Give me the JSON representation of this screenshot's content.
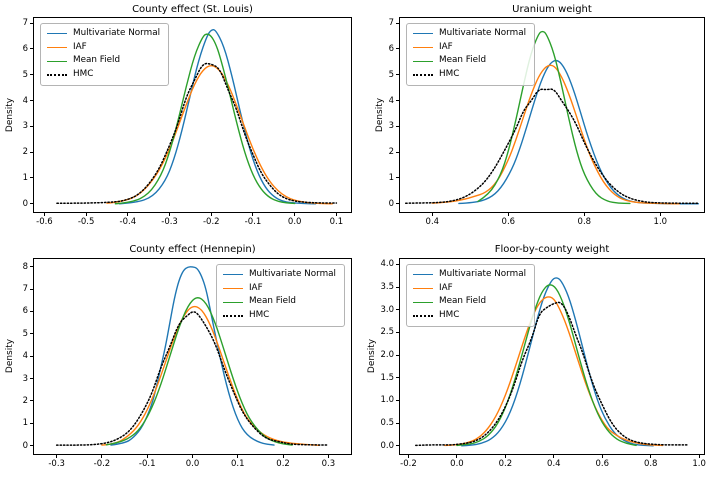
{
  "figure": {
    "background": "#ffffff"
  },
  "palette": {
    "multivariate_normal": "#1f77b4",
    "iaf": "#ff7f0e",
    "mean_field": "#2ca02c",
    "hmc": "#000000",
    "legend_border": "#b4b4b4"
  },
  "chart_data": [
    {
      "type": "line",
      "title": "County effect (St. Louis)",
      "ylabel": "Density",
      "xlim": [
        -0.625,
        0.135
      ],
      "ylim": [
        -0.32,
        7.2
      ],
      "xticks": [
        -0.6,
        -0.5,
        -0.4,
        -0.3,
        -0.2,
        -0.1,
        0.0,
        0.1
      ],
      "xtick_labels": [
        "-0.6",
        "-0.5",
        "-0.4",
        "-0.3",
        "-0.2",
        "-0.1",
        "0.0",
        "0.1"
      ],
      "yticks": [
        0,
        1,
        2,
        3,
        4,
        5,
        6,
        7
      ],
      "ytick_labels": [
        "0",
        "1",
        "2",
        "3",
        "4",
        "5",
        "6",
        "7"
      ],
      "grid": false,
      "legend_loc": "upper left",
      "series": [
        {
          "name": "Multivariate Normal",
          "color": "#1f77b4",
          "style": "solid",
          "x": [
            -0.42,
            -0.38,
            -0.34,
            -0.31,
            -0.29,
            -0.27,
            -0.25,
            -0.23,
            -0.21,
            -0.2,
            -0.19,
            -0.17,
            -0.15,
            -0.13,
            -0.11,
            -0.09,
            -0.07,
            -0.05,
            -0.03,
            -0.01,
            0.02,
            0.05
          ],
          "y": [
            0.0,
            0.04,
            0.27,
            0.88,
            1.68,
            2.84,
            4.24,
            5.59,
            6.52,
            6.74,
            6.75,
            6.13,
            4.94,
            3.52,
            2.22,
            1.24,
            0.61,
            0.27,
            0.1,
            0.04,
            0.01,
            0.0
          ]
        },
        {
          "name": "IAF",
          "color": "#ff7f0e",
          "style": "solid",
          "x": [
            -0.45,
            -0.41,
            -0.37,
            -0.33,
            -0.3,
            -0.28,
            -0.26,
            -0.24,
            -0.22,
            -0.2,
            -0.18,
            -0.16,
            -0.14,
            -0.12,
            -0.1,
            -0.08,
            -0.06,
            -0.04,
            -0.02,
            0.0,
            0.03,
            0.06,
            0.09
          ],
          "y": [
            0.02,
            0.09,
            0.36,
            1.11,
            2.11,
            2.96,
            3.85,
            4.65,
            5.2,
            5.4,
            5.2,
            4.65,
            3.85,
            2.96,
            2.11,
            1.4,
            0.86,
            0.49,
            0.26,
            0.13,
            0.04,
            0.01,
            0.0
          ]
        },
        {
          "name": "Mean Field",
          "color": "#2ca02c",
          "style": "solid",
          "x": [
            -0.43,
            -0.39,
            -0.35,
            -0.32,
            -0.3,
            -0.28,
            -0.26,
            -0.24,
            -0.22,
            -0.21,
            -0.2,
            -0.19,
            -0.18,
            -0.16,
            -0.14,
            -0.12,
            -0.1,
            -0.08,
            -0.06,
            -0.04,
            -0.02,
            0.0
          ],
          "y": [
            0.0,
            0.05,
            0.36,
            1.09,
            1.98,
            3.19,
            4.55,
            5.77,
            6.5,
            6.6,
            6.5,
            6.22,
            5.77,
            4.55,
            3.19,
            1.98,
            1.09,
            0.54,
            0.23,
            0.09,
            0.03,
            0.01
          ]
        },
        {
          "name": "HMC",
          "color": "#000000",
          "style": "dotted",
          "x": [
            -0.57,
            -0.53,
            -0.49,
            -0.45,
            -0.41,
            -0.37,
            -0.33,
            -0.3,
            -0.28,
            -0.26,
            -0.24,
            -0.22,
            -0.2,
            -0.18,
            -0.16,
            -0.14,
            -0.12,
            -0.1,
            -0.08,
            -0.06,
            -0.04,
            -0.02,
            0.0,
            0.03,
            0.06,
            0.1
          ],
          "y": [
            0.02,
            0.02,
            0.03,
            0.05,
            0.1,
            0.37,
            1.17,
            2.25,
            3.08,
            4.15,
            4.8,
            5.45,
            5.42,
            5.25,
            4.42,
            3.7,
            2.69,
            1.9,
            1.17,
            0.72,
            0.37,
            0.19,
            0.1,
            0.05,
            0.03,
            0.03
          ]
        }
      ]
    },
    {
      "type": "line",
      "title": "Uranium weight",
      "ylabel": "Density",
      "xlim": [
        0.315,
        1.115
      ],
      "ylim": [
        -0.32,
        7.2
      ],
      "xticks": [
        0.4,
        0.6,
        0.8,
        1.0
      ],
      "xtick_labels": [
        "0.4",
        "0.6",
        "0.8",
        "1.0"
      ],
      "yticks": [
        0,
        1,
        2,
        3,
        4,
        5,
        6,
        7
      ],
      "ytick_labels": [
        "0",
        "1",
        "2",
        "3",
        "4",
        "5",
        "6",
        "7"
      ],
      "grid": false,
      "legend_loc": "upper left",
      "series": [
        {
          "name": "Multivariate Normal",
          "color": "#1f77b4",
          "style": "solid",
          "x": [
            0.47,
            0.51,
            0.55,
            0.58,
            0.61,
            0.63,
            0.65,
            0.67,
            0.69,
            0.71,
            0.73,
            0.75,
            0.77,
            0.79,
            0.81,
            0.84,
            0.87,
            0.9,
            0.93,
            0.96,
            1.0,
            1.04,
            1.07,
            1.1
          ],
          "y": [
            0.01,
            0.04,
            0.2,
            0.58,
            1.34,
            2.11,
            3.05,
            4.04,
            4.9,
            5.47,
            5.6,
            5.23,
            4.5,
            3.55,
            2.56,
            1.34,
            0.58,
            0.2,
            0.06,
            0.02,
            0.01,
            0.0,
            0.0,
            0.0
          ]
        },
        {
          "name": "IAF",
          "color": "#ff7f0e",
          "style": "solid",
          "x": [
            0.4,
            0.44,
            0.48,
            0.51,
            0.54,
            0.57,
            0.6,
            0.62,
            0.64,
            0.66,
            0.68,
            0.7,
            0.72,
            0.74,
            0.76,
            0.78,
            0.8,
            0.82,
            0.85,
            0.88,
            0.91,
            0.95,
            1.0,
            1.05
          ],
          "y": [
            0.02,
            0.06,
            0.15,
            0.28,
            0.42,
            0.82,
            1.68,
            2.47,
            3.37,
            4.24,
            4.95,
            5.35,
            5.38,
            4.95,
            4.24,
            3.37,
            2.47,
            1.68,
            0.82,
            0.33,
            0.11,
            0.03,
            0.01,
            0.0
          ]
        },
        {
          "name": "Mean Field",
          "color": "#2ca02c",
          "style": "solid",
          "x": [
            0.52,
            0.55,
            0.58,
            0.6,
            0.62,
            0.64,
            0.66,
            0.68,
            0.69,
            0.7,
            0.72,
            0.74,
            0.76,
            0.78,
            0.8,
            0.83,
            0.86,
            0.89,
            0.92
          ],
          "y": [
            0.09,
            0.36,
            1.11,
            2.01,
            3.24,
            4.62,
            5.86,
            6.6,
            6.7,
            6.6,
            5.86,
            4.62,
            3.24,
            2.01,
            1.11,
            0.36,
            0.09,
            0.02,
            0.01
          ]
        },
        {
          "name": "HMC",
          "color": "#000000",
          "style": "dotted",
          "x": [
            0.33,
            0.37,
            0.41,
            0.45,
            0.49,
            0.53,
            0.56,
            0.59,
            0.62,
            0.64,
            0.66,
            0.68,
            0.7,
            0.72,
            0.74,
            0.76,
            0.78,
            0.8,
            0.83,
            0.86,
            0.89,
            0.92,
            0.96,
            1.0,
            1.05,
            1.1
          ],
          "y": [
            0.02,
            0.03,
            0.04,
            0.09,
            0.27,
            0.7,
            1.27,
            2.06,
            2.9,
            3.62,
            3.98,
            4.45,
            4.42,
            4.46,
            4.0,
            3.57,
            3.05,
            2.36,
            1.51,
            0.86,
            0.44,
            0.2,
            0.06,
            0.03,
            0.02,
            0.02
          ]
        }
      ]
    },
    {
      "type": "line",
      "title": "County effect (Hennepin)",
      "ylabel": "Density",
      "xlim": [
        -0.35,
        0.35
      ],
      "ylim": [
        -0.38,
        8.35
      ],
      "xticks": [
        -0.3,
        -0.2,
        -0.1,
        0.0,
        0.1,
        0.2,
        0.3
      ],
      "xtick_labels": [
        "-0.3",
        "-0.2",
        "-0.1",
        "0.0",
        "0.1",
        "0.2",
        "0.3"
      ],
      "yticks": [
        0,
        1,
        2,
        3,
        4,
        5,
        6,
        7,
        8
      ],
      "ytick_labels": [
        "0",
        "1",
        "2",
        "3",
        "4",
        "5",
        "6",
        "7",
        "8"
      ],
      "grid": false,
      "legend_loc": "upper right",
      "series": [
        {
          "name": "Multivariate Normal",
          "color": "#1f77b4",
          "style": "solid",
          "x": [
            -0.18,
            -0.15,
            -0.13,
            -0.11,
            -0.09,
            -0.08,
            -0.07,
            -0.06,
            -0.05,
            -0.04,
            -0.03,
            -0.02,
            -0.01,
            0.0,
            0.01,
            0.02,
            0.03,
            0.04,
            0.06,
            0.08,
            0.1,
            0.12,
            0.15,
            0.18
          ],
          "y": [
            0.02,
            0.1,
            0.35,
            0.85,
            1.8,
            2.6,
            3.5,
            4.4,
            5.5,
            6.6,
            7.4,
            7.85,
            8.0,
            8.0,
            7.95,
            7.6,
            7.0,
            6.0,
            4.0,
            2.3,
            1.1,
            0.45,
            0.1,
            0.02
          ]
        },
        {
          "name": "IAF",
          "color": "#ff7f0e",
          "style": "solid",
          "x": [
            -0.2,
            -0.17,
            -0.14,
            -0.12,
            -0.1,
            -0.08,
            -0.06,
            -0.04,
            -0.02,
            0.0,
            0.02,
            0.04,
            0.06,
            0.08,
            0.1,
            0.12,
            0.15,
            0.18,
            0.21,
            0.25,
            0.28
          ],
          "y": [
            0.02,
            0.06,
            0.45,
            0.88,
            1.57,
            2.54,
            3.7,
            4.88,
            5.82,
            6.28,
            6.12,
            5.4,
            4.3,
            3.1,
            2.02,
            1.19,
            0.55,
            0.25,
            0.12,
            0.04,
            0.01
          ]
        },
        {
          "name": "Mean Field",
          "color": "#2ca02c",
          "style": "solid",
          "x": [
            -0.19,
            -0.16,
            -0.13,
            -0.11,
            -0.09,
            -0.07,
            -0.05,
            -0.03,
            -0.01,
            0.01,
            0.03,
            0.05,
            0.07,
            0.09,
            0.11,
            0.13,
            0.16,
            0.19,
            0.22
          ],
          "y": [
            0.03,
            0.13,
            0.45,
            0.91,
            1.66,
            2.71,
            4.0,
            5.29,
            6.28,
            6.7,
            6.41,
            5.52,
            4.26,
            2.96,
            1.84,
            1.03,
            0.35,
            0.1,
            0.02
          ]
        },
        {
          "name": "HMC",
          "color": "#000000",
          "style": "dotted",
          "x": [
            -0.3,
            -0.27,
            -0.24,
            -0.21,
            -0.18,
            -0.15,
            -0.13,
            -0.11,
            -0.09,
            -0.07,
            -0.05,
            -0.03,
            -0.01,
            0.0,
            0.01,
            0.03,
            0.05,
            0.07,
            0.09,
            0.11,
            0.13,
            0.16,
            0.19,
            0.22,
            0.26,
            0.3
          ],
          "y": [
            0.02,
            0.02,
            0.02,
            0.05,
            0.15,
            0.45,
            0.86,
            1.5,
            2.3,
            3.5,
            4.42,
            5.48,
            5.85,
            6.0,
            5.95,
            5.35,
            4.58,
            3.42,
            2.42,
            1.5,
            0.92,
            0.32,
            0.17,
            0.05,
            0.03,
            0.02
          ]
        }
      ]
    },
    {
      "type": "line",
      "title": "Floor-by-county weight",
      "ylabel": "Density",
      "xlim": [
        -0.235,
        1.02
      ],
      "ylim": [
        -0.18,
        4.12
      ],
      "xticks": [
        -0.2,
        0.0,
        0.2,
        0.4,
        0.6,
        0.8,
        1.0
      ],
      "xtick_labels": [
        "-0.2",
        "0.0",
        "0.2",
        "0.4",
        "0.6",
        "0.8",
        "1.0"
      ],
      "yticks": [
        0,
        0.5,
        1,
        1.5,
        2,
        2.5,
        3,
        3.5,
        4
      ],
      "ytick_labels": [
        "0.0",
        "0.5",
        "1.0",
        "1.5",
        "2.0",
        "2.5",
        "3.0",
        "3.5",
        "4.0"
      ],
      "grid": false,
      "legend_loc": "upper left",
      "series": [
        {
          "name": "Multivariate Normal",
          "color": "#1f77b4",
          "style": "solid",
          "x": [
            0.02,
            0.06,
            0.1,
            0.14,
            0.18,
            0.22,
            0.26,
            0.3,
            0.33,
            0.36,
            0.39,
            0.41,
            0.43,
            0.46,
            0.49,
            0.52,
            0.55,
            0.58,
            0.61,
            0.65,
            0.69,
            0.73,
            0.77,
            0.81
          ],
          "y": [
            0.0,
            0.01,
            0.05,
            0.14,
            0.34,
            0.72,
            1.34,
            2.15,
            2.78,
            3.32,
            3.65,
            3.72,
            3.65,
            3.32,
            2.78,
            2.15,
            1.53,
            1.0,
            0.61,
            0.27,
            0.11,
            0.03,
            0.01,
            0.0
          ]
        },
        {
          "name": "IAF",
          "color": "#ff7f0e",
          "style": "solid",
          "x": [
            -0.05,
            0.0,
            0.04,
            0.08,
            0.12,
            0.16,
            0.2,
            0.24,
            0.28,
            0.31,
            0.34,
            0.37,
            0.4,
            0.43,
            0.46,
            0.5,
            0.54,
            0.58,
            0.62,
            0.66,
            0.7,
            0.75,
            0.8,
            0.85
          ],
          "y": [
            0.01,
            0.02,
            0.06,
            0.14,
            0.32,
            0.63,
            1.1,
            1.72,
            2.39,
            2.84,
            3.16,
            3.3,
            3.26,
            2.96,
            2.55,
            1.88,
            1.24,
            0.73,
            0.38,
            0.22,
            0.12,
            0.05,
            0.02,
            0.01
          ]
        },
        {
          "name": "Mean Field",
          "color": "#2ca02c",
          "style": "solid",
          "x": [
            0.0,
            0.05,
            0.09,
            0.13,
            0.17,
            0.21,
            0.25,
            0.29,
            0.32,
            0.35,
            0.38,
            0.41,
            0.44,
            0.47,
            0.5,
            0.54,
            0.58,
            0.62,
            0.66,
            0.7,
            0.74
          ],
          "y": [
            0.01,
            0.03,
            0.09,
            0.22,
            0.49,
            0.96,
            1.64,
            2.43,
            2.99,
            3.4,
            3.58,
            3.49,
            3.14,
            2.63,
            2.03,
            1.28,
            0.7,
            0.34,
            0.14,
            0.05,
            0.01
          ]
        },
        {
          "name": "HMC",
          "color": "#000000",
          "style": "dotted",
          "x": [
            -0.17,
            -0.12,
            -0.07,
            -0.02,
            0.03,
            0.07,
            0.11,
            0.15,
            0.19,
            0.23,
            0.27,
            0.31,
            0.34,
            0.37,
            0.4,
            0.43,
            0.46,
            0.49,
            0.52,
            0.56,
            0.6,
            0.64,
            0.68,
            0.72,
            0.77,
            0.82,
            0.87,
            0.92,
            0.95
          ],
          "y": [
            0.01,
            0.02,
            0.02,
            0.02,
            0.05,
            0.09,
            0.2,
            0.41,
            0.74,
            1.23,
            1.9,
            2.38,
            2.92,
            3.05,
            3.14,
            3.18,
            2.9,
            2.45,
            2.05,
            1.37,
            0.9,
            0.48,
            0.24,
            0.11,
            0.05,
            0.03,
            0.02,
            0.02,
            0.02
          ]
        }
      ]
    }
  ]
}
